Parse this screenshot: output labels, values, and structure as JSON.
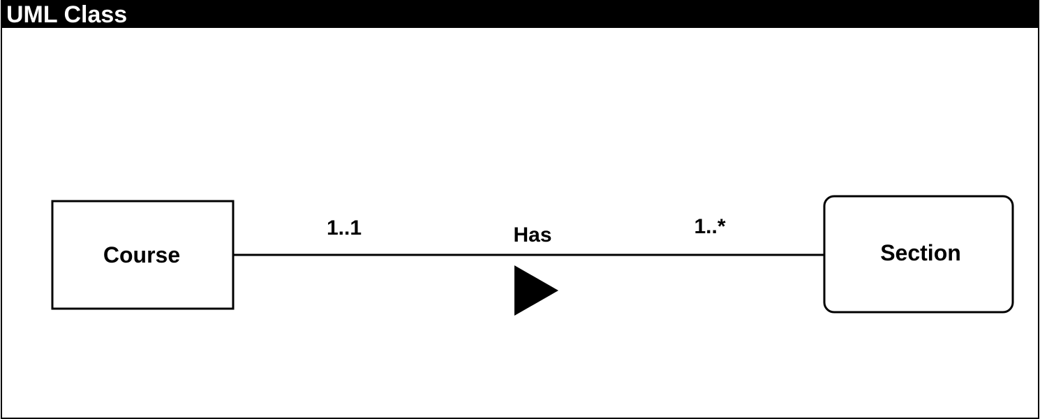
{
  "frame": {
    "title": "UML Class"
  },
  "classes": {
    "course": {
      "name": "Course"
    },
    "section": {
      "name": "Section"
    }
  },
  "association": {
    "name": "Has",
    "source_multiplicity": "1..1",
    "target_multiplicity": "1..*",
    "direction_icon": "filled-triangle-right"
  },
  "colors": {
    "stroke": "#000000",
    "background": "#ffffff",
    "title_bar": "#000000",
    "title_text": "#ffffff"
  }
}
